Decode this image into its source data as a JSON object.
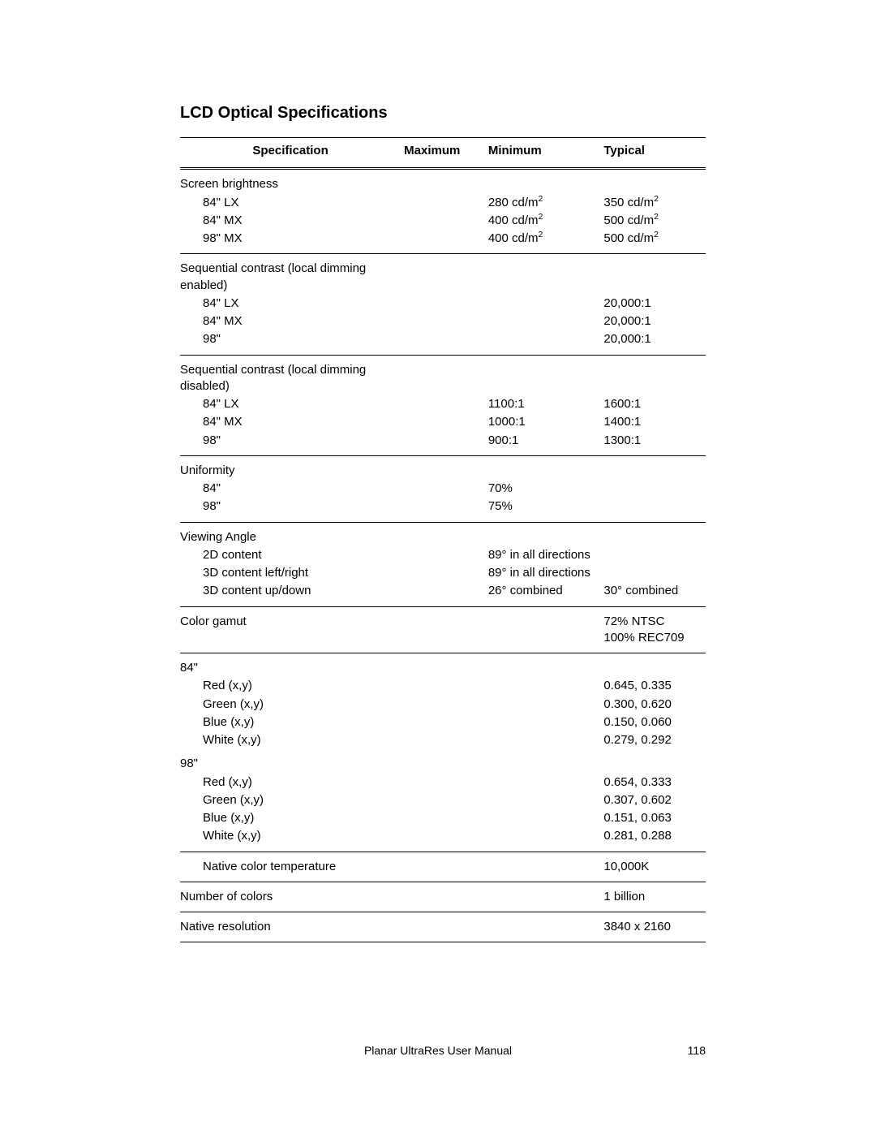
{
  "title": "LCD Optical Specifications",
  "columns": {
    "spec": "Specification",
    "max": "Maximum",
    "min": "Minimum",
    "typ": "Typical"
  },
  "footer": {
    "center": "Planar UltraRes User Manual",
    "page": "118"
  },
  "units": {
    "cdm2_html": "cd/m<sup>2</sup>"
  },
  "groups": [
    {
      "header": "Screen brightness",
      "rows": [
        {
          "label": "84\" LX",
          "min_html": "280 cd/m<sup>2</sup>",
          "typ_html": "350 cd/m<sup>2</sup>"
        },
        {
          "label": "84\" MX",
          "min_html": "400 cd/m<sup>2</sup>",
          "typ_html": "500 cd/m<sup>2</sup>"
        },
        {
          "label": "98\" MX",
          "min_html": "400 cd/m<sup>2</sup>",
          "typ_html": "500 cd/m<sup>2</sup>"
        }
      ]
    },
    {
      "header": "Sequential contrast (local dimming enabled)",
      "rows": [
        {
          "label": "84\" LX",
          "typ": "20,000:1"
        },
        {
          "label": "84\" MX",
          "typ": "20,000:1"
        },
        {
          "label": "98\"",
          "typ": "20,000:1"
        }
      ]
    },
    {
      "header": "Sequential contrast (local dimming disabled)",
      "rows": [
        {
          "label": "84\" LX",
          "min": "1100:1",
          "typ": "1600:1"
        },
        {
          "label": "84\" MX",
          "min": "1000:1",
          "typ": "1400:1"
        },
        {
          "label": "98\"",
          "min": "900:1",
          "typ": "1300:1"
        }
      ]
    },
    {
      "header": "Uniformity",
      "rows": [
        {
          "label": "84\"",
          "min": "70%"
        },
        {
          "label": "98\"",
          "min": "75%"
        }
      ]
    },
    {
      "header": "Viewing Angle",
      "rows": [
        {
          "label": "2D content",
          "min": "89° in all directions"
        },
        {
          "label": "3D content left/right",
          "min": "89° in all directions"
        },
        {
          "label": "3D content up/down",
          "min": "26° combined",
          "typ": "30° combined"
        }
      ]
    },
    {
      "header": "Color gamut",
      "header_typ_html": "72% NTSC<br>100% REC709",
      "rows": []
    },
    {
      "header": "84\"",
      "no_sep_after": true,
      "rows": [
        {
          "label": "Red (x,y)",
          "typ": "0.645, 0.335"
        },
        {
          "label": "Green (x,y)",
          "typ": "0.300, 0.620"
        },
        {
          "label": "Blue (x,y)",
          "typ": "0.150, 0.060"
        },
        {
          "label": "White (x,y)",
          "typ": "0.279, 0.292"
        }
      ]
    },
    {
      "header": "98\"",
      "tight_top": true,
      "rows": [
        {
          "label": "Red (x,y)",
          "typ": "0.654, 0.333"
        },
        {
          "label": "Green (x,y)",
          "typ": "0.307, 0.602"
        },
        {
          "label": "Blue (x,y)",
          "typ": "0.151, 0.063"
        },
        {
          "label": "White (x,y)",
          "typ": "0.281, 0.288"
        }
      ]
    },
    {
      "header": "Native color temperature",
      "header_indent": 1,
      "header_typ": "10,000K",
      "rows": []
    },
    {
      "header": "Number of colors",
      "header_typ": "1 billion",
      "rows": []
    },
    {
      "header": "Native resolution",
      "header_typ": "3840 x 2160",
      "rows": []
    }
  ]
}
